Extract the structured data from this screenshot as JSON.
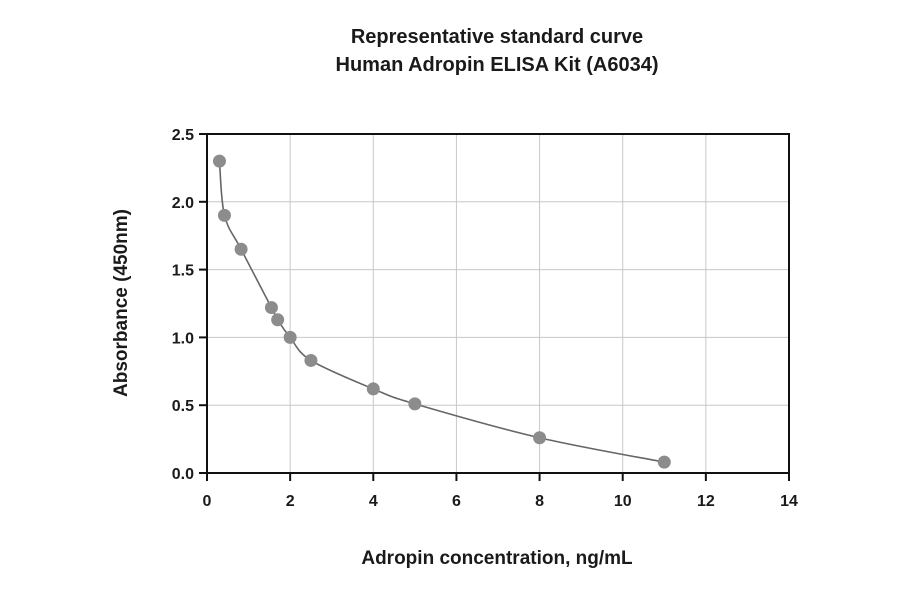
{
  "chart_data": {
    "type": "scatter",
    "title": "Representative standard curve",
    "subtitle": "Human Adropin ELISA Kit (A6034)",
    "xlabel": "Adropin concentration, ng/mL",
    "ylabel": "Absorbance (450nm)",
    "xlim": [
      0,
      14
    ],
    "ylim": [
      0,
      2.5
    ],
    "x_ticks": [
      "0",
      "2",
      "4",
      "6",
      "8",
      "10",
      "12",
      "14"
    ],
    "y_ticks": [
      "0.0",
      "0.5",
      "1.0",
      "1.5",
      "2.0",
      "2.5"
    ],
    "grid": true,
    "legend": "none",
    "point_color": "#8c8c8c",
    "line_color": "#666666",
    "series": [
      {
        "x": [
          0.3,
          0.42,
          0.82,
          1.55,
          1.7,
          2.0,
          2.5,
          4.0,
          5.0,
          8.0,
          11.0
        ],
        "y": [
          2.3,
          1.9,
          1.65,
          1.22,
          1.13,
          1.0,
          0.83,
          0.62,
          0.51,
          0.26,
          0.08
        ]
      }
    ]
  }
}
